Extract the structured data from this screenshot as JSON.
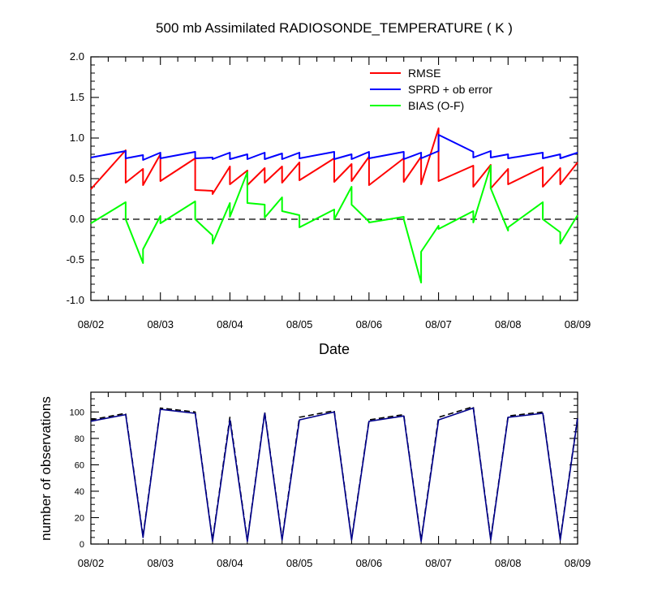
{
  "chart_data": [
    {
      "type": "line",
      "title": "500 mb Assimilated RADIOSONDE_TEMPERATURE ( K )",
      "xlabel": "Date",
      "ylabel": "",
      "x_range": [
        0,
        7
      ],
      "ylim": [
        -1.0,
        2.0
      ],
      "y_ticks": [
        2.0,
        1.5,
        1.0,
        0.5,
        0.0,
        -0.5,
        -1.0
      ],
      "y_tick_labels": [
        "2.0",
        "1.5",
        "1.0",
        "0.5",
        "0.0",
        "-0.5",
        "-1.0"
      ],
      "x_ticks": [
        0,
        1,
        2,
        3,
        4,
        5,
        6,
        7
      ],
      "x_tick_labels": [
        "08/02",
        "08/03",
        "08/04",
        "08/05",
        "08/06",
        "08/07",
        "08/08",
        "08/09"
      ],
      "legend_position": "top-right",
      "zero_line": true,
      "series": [
        {
          "name": "RMSE",
          "color": "#ff0000",
          "x": [
            0,
            0.5,
            0.5,
            0.75,
            0.75,
            1,
            1,
            1.5,
            1.5,
            1.75,
            1.75,
            2,
            2,
            2.25,
            2.25,
            2.5,
            2.5,
            2.75,
            2.75,
            3,
            3,
            3.5,
            3.5,
            3.75,
            3.75,
            4,
            4,
            4.5,
            4.5,
            4.75,
            4.75,
            5,
            5,
            5.5,
            5.5,
            5.75,
            5.75,
            6,
            6,
            6.5,
            6.5,
            6.75,
            6.75,
            7
          ],
          "y": [
            0.37,
            0.85,
            0.45,
            0.62,
            0.42,
            0.8,
            0.47,
            0.75,
            0.36,
            0.35,
            0.31,
            0.65,
            0.43,
            0.6,
            0.42,
            0.63,
            0.45,
            0.65,
            0.45,
            0.7,
            0.48,
            0.75,
            0.46,
            0.68,
            0.47,
            0.77,
            0.42,
            0.75,
            0.46,
            0.77,
            0.43,
            1.12,
            0.47,
            0.66,
            0.4,
            0.67,
            0.38,
            0.62,
            0.43,
            0.64,
            0.4,
            0.63,
            0.43,
            0.7
          ]
        },
        {
          "name": "SPRD + ob error",
          "color": "#0000ff",
          "x": [
            0,
            0.5,
            0.5,
            0.75,
            0.75,
            1,
            1,
            1.5,
            1.5,
            1.75,
            1.75,
            2,
            2,
            2.25,
            2.25,
            2.5,
            2.5,
            2.75,
            2.75,
            3,
            3,
            3.5,
            3.5,
            3.75,
            3.75,
            4,
            4,
            4.5,
            4.5,
            4.75,
            4.75,
            5,
            5,
            5.5,
            5.5,
            5.75,
            5.75,
            6,
            6,
            6.5,
            6.5,
            6.75,
            6.75,
            7
          ],
          "y": [
            0.76,
            0.84,
            0.75,
            0.79,
            0.73,
            0.82,
            0.75,
            0.83,
            0.75,
            0.76,
            0.74,
            0.82,
            0.74,
            0.8,
            0.74,
            0.82,
            0.74,
            0.81,
            0.74,
            0.82,
            0.75,
            0.83,
            0.74,
            0.8,
            0.74,
            0.83,
            0.75,
            0.83,
            0.74,
            0.82,
            0.75,
            0.84,
            1.04,
            0.83,
            0.76,
            0.84,
            0.76,
            0.8,
            0.75,
            0.82,
            0.75,
            0.8,
            0.75,
            0.82
          ]
        },
        {
          "name": "BIAS (O-F)",
          "color": "#00ff00",
          "x": [
            0,
            0.5,
            0.5,
            0.75,
            0.75,
            1,
            1,
            1.5,
            1.5,
            1.75,
            1.75,
            2,
            2,
            2.25,
            2.25,
            2.5,
            2.5,
            2.75,
            2.75,
            3,
            3,
            3.5,
            3.5,
            3.75,
            3.75,
            4,
            4,
            4.5,
            4.5,
            4.75,
            4.75,
            5,
            5,
            5.5,
            5.5,
            5.75,
            5.75,
            6,
            6,
            6.5,
            6.5,
            6.75,
            6.75,
            7
          ],
          "y": [
            -0.05,
            0.21,
            0.0,
            -0.54,
            -0.37,
            0.04,
            -0.05,
            0.22,
            0.0,
            -0.2,
            -0.3,
            0.2,
            0.03,
            0.58,
            0.2,
            0.18,
            0.02,
            0.27,
            0.1,
            0.05,
            -0.1,
            0.12,
            0.0,
            0.4,
            0.18,
            -0.03,
            -0.04,
            0.03,
            0.0,
            -0.78,
            -0.4,
            -0.08,
            -0.12,
            0.1,
            -0.04,
            0.66,
            0.38,
            -0.14,
            -0.1,
            0.21,
            0.0,
            -0.16,
            -0.3,
            0.05
          ]
        }
      ]
    },
    {
      "type": "line",
      "title": "",
      "xlabel": "",
      "ylabel": "number of observations",
      "x_range": [
        0,
        7
      ],
      "ylim": [
        0,
        115
      ],
      "y_ticks": [
        0,
        20,
        40,
        60,
        80,
        100
      ],
      "y_tick_labels": [
        "0",
        "20",
        "40",
        "60",
        "80",
        "100"
      ],
      "x_ticks": [
        0,
        1,
        2,
        3,
        4,
        5,
        6,
        7
      ],
      "x_tick_labels": [
        "08/02",
        "08/03",
        "08/04",
        "08/05",
        "08/06",
        "08/07",
        "08/08",
        "08/09"
      ],
      "series": [
        {
          "color": "#000000",
          "dash": true,
          "x": [
            0,
            0.5,
            0.75,
            1,
            1.5,
            1.75,
            2,
            2.25,
            2.5,
            2.75,
            3,
            3.5,
            3.75,
            4,
            4.5,
            4.75,
            5,
            5.5,
            5.75,
            6,
            6.5,
            6.75,
            7
          ],
          "y": [
            94,
            99,
            6,
            103,
            100,
            3,
            96,
            3,
            100,
            4,
            96,
            101,
            4,
            94,
            98,
            3,
            96,
            104,
            4,
            97,
            100,
            4,
            96
          ]
        },
        {
          "color": "#00008b",
          "dash": false,
          "x": [
            0,
            0.5,
            0.75,
            1,
            1.5,
            1.75,
            2,
            2.25,
            2.5,
            2.75,
            3,
            3.5,
            3.75,
            4,
            4.5,
            4.75,
            5,
            5.5,
            5.75,
            6,
            6.5,
            6.75,
            7
          ],
          "y": [
            93,
            98,
            5,
            102,
            99,
            2,
            94,
            2,
            99,
            3,
            94,
            100,
            3,
            93,
            97,
            2,
            94,
            103,
            3,
            96,
            99,
            3,
            95
          ]
        }
      ]
    }
  ]
}
